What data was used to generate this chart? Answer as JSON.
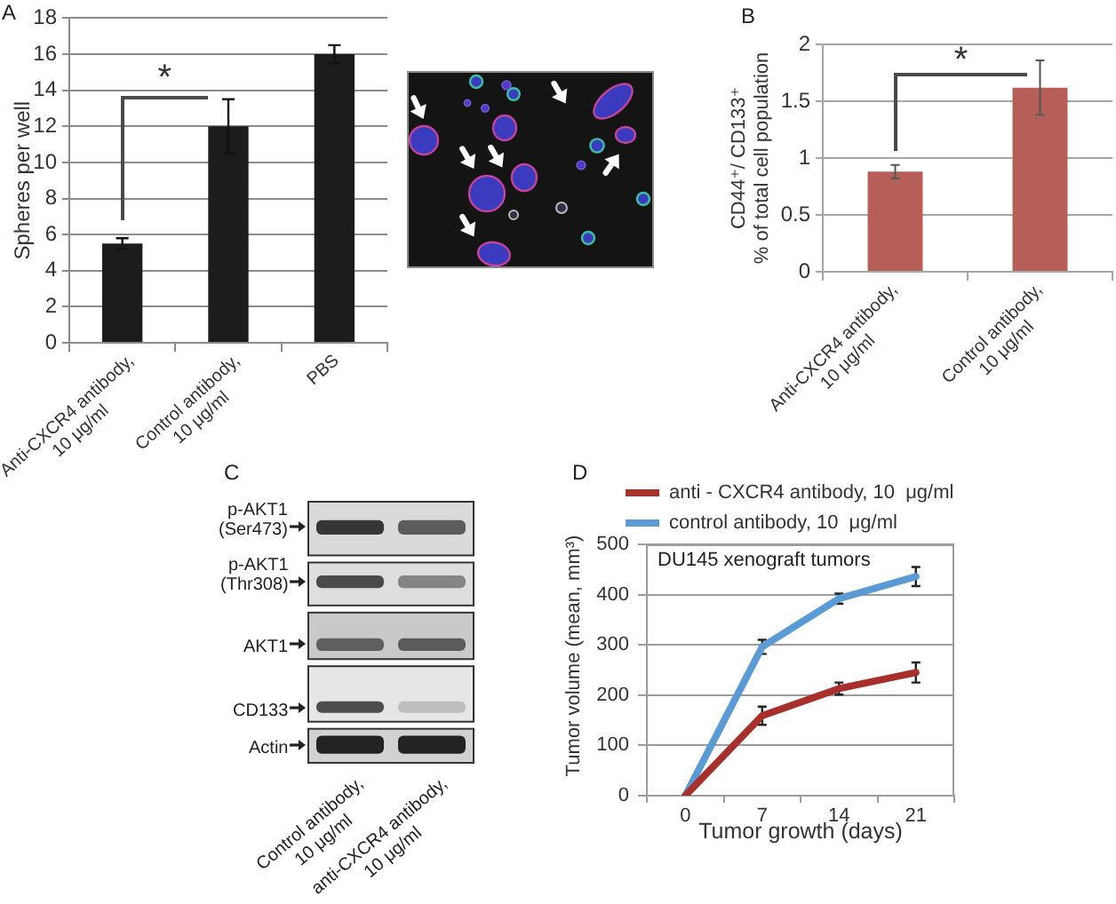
{
  "chart_data": [
    {
      "type": "bar",
      "title": "A",
      "ylabel": "Spheres per well",
      "categories": [
        "Anti-CXCR4 antibody,\n10 μg/ml",
        "Control antibody,\n10 μg/ml",
        "PBS"
      ],
      "values": [
        5.5,
        12,
        16
      ],
      "errors": [
        0.3,
        1.5,
        0.5
      ],
      "color": "#1c1c1c",
      "ylim": [
        0,
        18
      ],
      "yticks": [
        0,
        2,
        4,
        6,
        8,
        10,
        12,
        14,
        16,
        18
      ],
      "grid": "y",
      "annotations": [
        "*"
      ]
    },
    {
      "type": "bar",
      "title": "B",
      "ylabel": "CD44⁺/ CD133⁺\n% of total cell population",
      "categories": [
        "Anti-CXCR4 antibody,\n10 μg/ml",
        "Control antibody,\n10 μg/ml"
      ],
      "values": [
        0.88,
        1.62
      ],
      "errors": [
        0.06,
        0.24
      ],
      "color": "#b65f58",
      "ylim": [
        0,
        2
      ],
      "yticks": [
        0,
        0.5,
        1,
        1.5,
        2
      ],
      "grid": "y",
      "annotations": [
        "*"
      ]
    },
    {
      "type": "other",
      "title": "C",
      "categories": [
        "Control antibody,\n10 μg/ml",
        "anti-CXCR4 antibody,\n10 μg/ml"
      ],
      "y_categories": [
        "p-AKT1\n(Ser473)",
        "p-AKT1\n(Thr308)",
        "AKT1",
        "CD133",
        "Actin"
      ]
    },
    {
      "type": "line",
      "title": "D",
      "xlabel": "Tumor growth (days)",
      "ylabel": "Tumor volume (mean, mm³)",
      "categories": [
        "0",
        "7",
        "14",
        "21"
      ],
      "series": [
        {
          "name": "anti - CXCR4 antibody, 10  μg/ml",
          "color": "#a8302c",
          "values": [
            0,
            159,
            213,
            245
          ],
          "errors": [
            null,
            18,
            12,
            20
          ]
        },
        {
          "name": "control antibody, 10  μg/ml",
          "color": "#5b9bd5",
          "values": [
            0,
            296,
            392,
            436
          ],
          "errors": [
            null,
            14,
            10,
            19
          ]
        }
      ],
      "ylim": [
        0,
        500
      ],
      "yticks": [
        0,
        100,
        200,
        300,
        400,
        500
      ],
      "grid": "y",
      "legend": "top",
      "annotations": [
        "DU145 xenograft tumors"
      ]
    }
  ]
}
